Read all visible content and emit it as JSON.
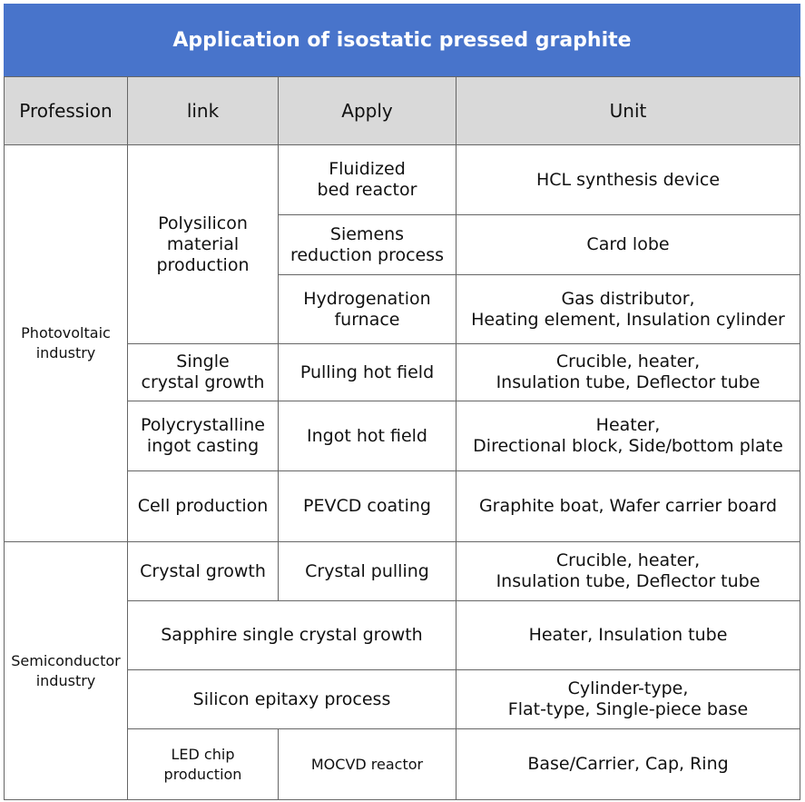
{
  "title": "Application of isostatic pressed graphite",
  "headers": {
    "profession": "Profession",
    "link": "link",
    "apply": "Apply",
    "unit": "Unit"
  },
  "professions": [
    "Photovoltaic\nindustry",
    "Semiconductor\nindustry"
  ],
  "links": [
    "Polysilicon\nmaterial\nproduction",
    "Single\ncrystal growth",
    "Polycrystalline\ningot casting",
    "Cell production",
    "Crystal growth",
    "Sapphire single crystal growth",
    "Silicon epitaxy process",
    "LED chip\nproduction"
  ],
  "apply": [
    "Fluidized\nbed reactor",
    "Siemens\nreduction process",
    "Hydrogenation\nfurnace",
    "Pulling hot field",
    "Ingot hot field",
    "PEVCD coating",
    "Crystal pulling",
    "MOCVD reactor"
  ],
  "units": [
    "HCL synthesis device",
    "Card lobe",
    "Gas distributor,\nHeating element, Insulation cylinder",
    "Crucible, heater,\nInsulation tube, Deflector tube",
    "Heater,\nDirectional block, Side/bottom plate",
    "Graphite boat, Wafer carrier board",
    "Crucible, heater,\nInsulation tube, Deflector tube",
    "Heater, Insulation tube",
    "Cylinder-type,\nFlat-type, Single-piece base",
    "Base/Carrier, Cap, Ring"
  ],
  "colors": {
    "title_bg": "#4874cb",
    "header_bg": "#d9d9d9"
  }
}
